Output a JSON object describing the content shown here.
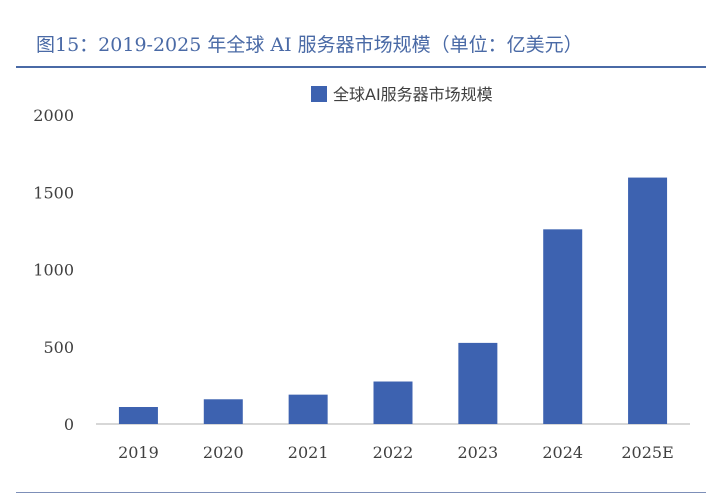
{
  "figure": {
    "title": "图15：2019-2025 年全球 AI 服务器市场规模（单位：亿美元）"
  },
  "colors": {
    "title": "#4a6aa6",
    "bar": "#3d62b0",
    "axis": "#bfbfbf",
    "text": "#404040"
  },
  "chart_data": {
    "type": "bar",
    "title": "",
    "xlabel": "",
    "ylabel": "",
    "categories": [
      "2019",
      "2020",
      "2021",
      "2022",
      "2023",
      "2024",
      "2025E"
    ],
    "series": [
      {
        "name": "全球AI服务器市场规模",
        "values": [
          110,
          160,
          190,
          275,
          525,
          1260,
          1595
        ]
      }
    ],
    "ylim": [
      0,
      2000
    ],
    "yticks": [
      0,
      500,
      1000,
      1500,
      2000
    ],
    "grid": false,
    "legend": "top-center"
  }
}
